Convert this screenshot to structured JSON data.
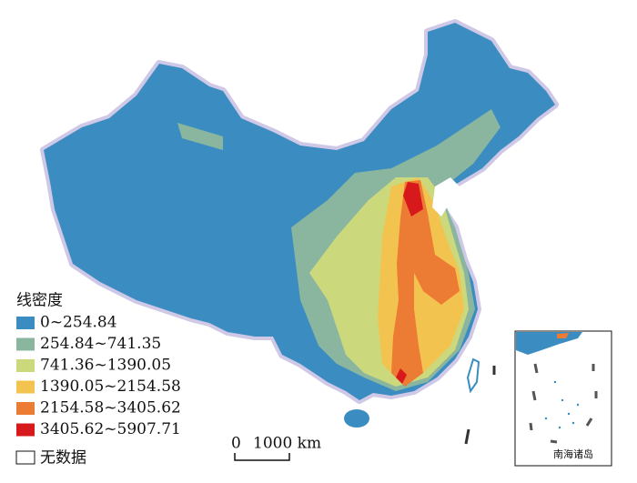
{
  "legend": {
    "title": "线密度",
    "items": [
      {
        "label": "0~254.84",
        "color": "#3a8cc1"
      },
      {
        "label": "254.84~741.35",
        "color": "#8ab59f"
      },
      {
        "label": "741.36~1390.05",
        "color": "#cbd97c"
      },
      {
        "label": "1390.05~2154.58",
        "color": "#f3c350"
      },
      {
        "label": "2154.58~3405.62",
        "color": "#ec7b34"
      },
      {
        "label": "3405.62~5907.71",
        "color": "#d7191c"
      }
    ],
    "no_data": "无数据"
  },
  "scale_bar": {
    "start": "0",
    "end": "1000 km"
  },
  "inset": {
    "label": "南海诸岛"
  }
}
